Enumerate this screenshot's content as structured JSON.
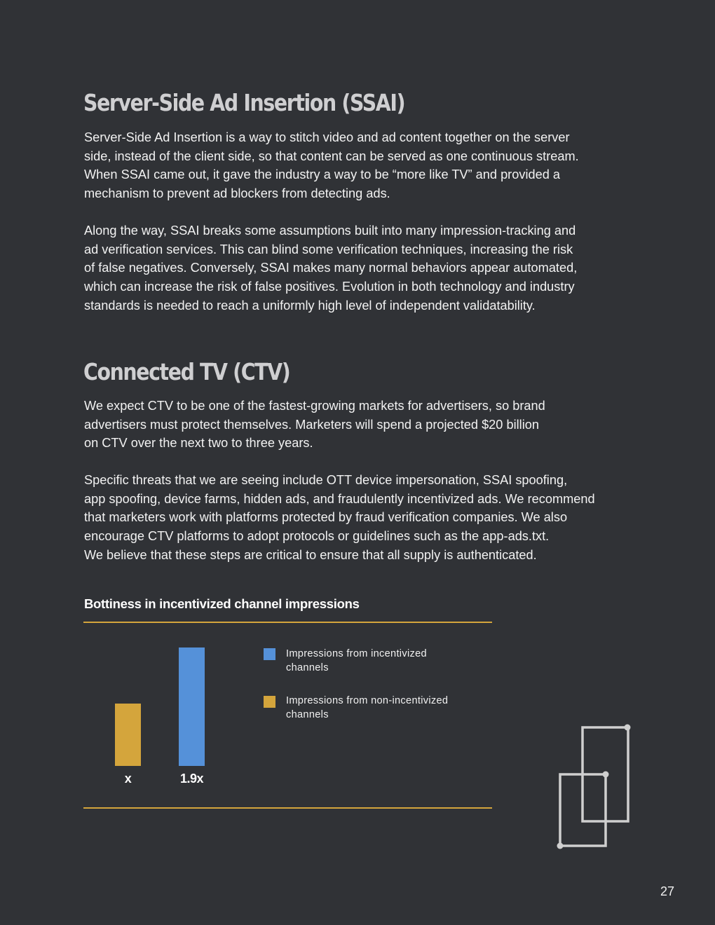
{
  "ssai": {
    "heading": "Server-Side Ad Insertion (SSAI)",
    "p1": [
      "Server-Side Ad Insertion is a way to stitch video and ad content together on the server",
      "side, instead of the client side, so that content can be served as one continuous stream.",
      "When SSAI came out, it gave the industry a way to be “more like TV” and provided a",
      "mechanism to prevent ad blockers from detecting ads."
    ],
    "p2": [
      "Along the way, SSAI breaks some assumptions built into many impression-tracking and",
      "ad verification services. This can blind some verification techniques, increasing the risk",
      "of false negatives. Conversely, SSAI makes many normal behaviors appear automated,",
      "which can increase the risk of false positives. Evolution in both technology and industry",
      "standards is needed to reach a uniformly high level of independent validatability."
    ]
  },
  "ctv": {
    "heading": "Connected TV (CTV)",
    "p1": [
      "We expect CTV to be one of the fastest-growing markets for advertisers, so brand",
      "advertisers must protect themselves. Marketers will spend a projected $20 billion",
      "on CTV over the next two to three years."
    ],
    "p2": [
      "Specific threats that we are seeing include OTT device impersonation, SSAI spoofing,",
      "app spoofing, device farms, hidden ads, and fraudulently incentivized ads. We recommend",
      "that marketers work with platforms protected by fraud verification companies. We also",
      "encourage CTV platforms to adopt protocols or guidelines such as the app-ads.txt.",
      "We believe that these steps are critical to ensure that all supply is authenticated."
    ]
  },
  "chart_data": {
    "type": "bar",
    "title": "Bottiness in incentivized channel impressions",
    "categories": [
      "x",
      "1.9x"
    ],
    "values": [
      1,
      1.9
    ],
    "colors": [
      "#d4a53c",
      "#5591d9"
    ],
    "legend": [
      {
        "lines": [
          "Impressions from incentivized",
          "channels"
        ],
        "color": "#5591d9"
      },
      {
        "lines": [
          "Impressions from non-incentivized",
          "channels"
        ],
        "color": "#d4a53c"
      }
    ],
    "legend_position": "right",
    "grid": false
  },
  "accent_color": "#d4a53c",
  "decoration_icon": "overlapping-rectangles-icon",
  "page_number": "27"
}
